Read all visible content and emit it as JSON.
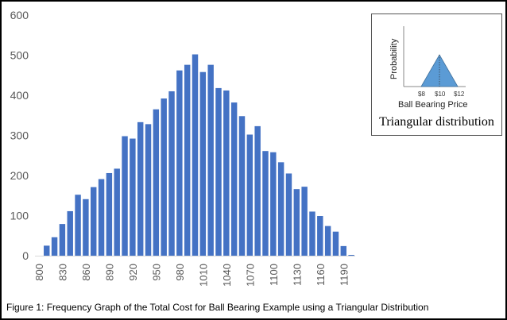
{
  "chart_data": {
    "type": "bar",
    "title": "",
    "xlabel": "",
    "ylabel": "",
    "ylim": [
      0,
      600
    ],
    "yticks": [
      "0",
      "100",
      "200",
      "300",
      "400",
      "500",
      "600"
    ],
    "grid": false,
    "categories": [
      800,
      810,
      820,
      830,
      840,
      850,
      860,
      870,
      880,
      890,
      900,
      910,
      920,
      930,
      940,
      950,
      960,
      970,
      980,
      990,
      1000,
      1010,
      1020,
      1030,
      1040,
      1050,
      1060,
      1070,
      1080,
      1090,
      1100,
      1110,
      1120,
      1130,
      1140,
      1150,
      1160,
      1170,
      1180,
      1190,
      1200
    ],
    "xtick_labels": [
      "800",
      "830",
      "860",
      "890",
      "920",
      "950",
      "980",
      "1010",
      "1040",
      "1070",
      "1100",
      "1130",
      "1160",
      "1190"
    ],
    "values": [
      0,
      25,
      46,
      79,
      111,
      152,
      141,
      171,
      191,
      206,
      217,
      298,
      292,
      333,
      328,
      365,
      392,
      410,
      462,
      476,
      502,
      458,
      476,
      418,
      412,
      382,
      348,
      302,
      323,
      261,
      258,
      233,
      205,
      166,
      172,
      110,
      99,
      74,
      60,
      24,
      2
    ],
    "bar_color": "#4472C4"
  },
  "inset": {
    "ylabel": "Probability",
    "xlabel": "Ball Bearing Price",
    "ticks": [
      "$8",
      "$10",
      "$12"
    ],
    "title": "Triangular distribution"
  },
  "caption": "Figure 1: Frequency Graph of the Total Cost for Ball Bearing Example using a Triangular Distribution"
}
